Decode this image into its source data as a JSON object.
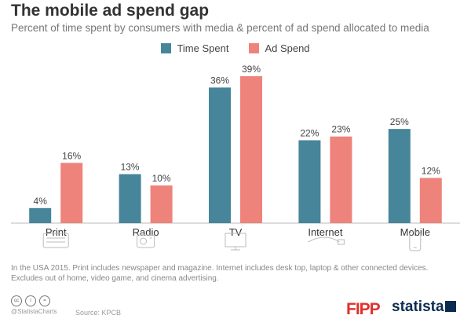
{
  "title": "The mobile ad spend gap",
  "subtitle": "Percent of time spent by consumers with media & percent of ad spend allocated to media",
  "footnote": "In the USA 2015. Print includes newspaper and magazine. Internet includes desk top, laptop & other connected devices. Excludes out of home, video game, and cinema advertising.",
  "footer": {
    "handle": "@StatistaCharts",
    "source": "Source: KPCB",
    "brands": [
      "FIPP",
      "statista"
    ]
  },
  "colors": {
    "time_spent": "#47859b",
    "ad_spend": "#ee837b"
  },
  "chart_data": {
    "type": "bar",
    "title": "The mobile ad spend gap",
    "subtitle": "Percent of time spent by consumers with media & percent of ad spend allocated to media",
    "categories": [
      "Print",
      "Radio",
      "TV",
      "Internet",
      "Mobile"
    ],
    "category_icons": [
      "print-icon",
      "radio-icon",
      "tv-icon",
      "internet-icon",
      "mobile-icon"
    ],
    "series": [
      {
        "name": "Time Spent",
        "values": [
          4,
          13,
          36,
          22,
          25
        ],
        "labels": [
          "4%",
          "13%",
          "36%",
          "22%",
          "25%"
        ]
      },
      {
        "name": "Ad Spend",
        "values": [
          16,
          10,
          39,
          23,
          12
        ],
        "labels": [
          "16%",
          "10%",
          "39%",
          "23%",
          "12%"
        ]
      }
    ],
    "ylim": [
      0,
      39
    ],
    "legend_position": "top-center",
    "grid": false,
    "xlabel": "",
    "ylabel": ""
  }
}
